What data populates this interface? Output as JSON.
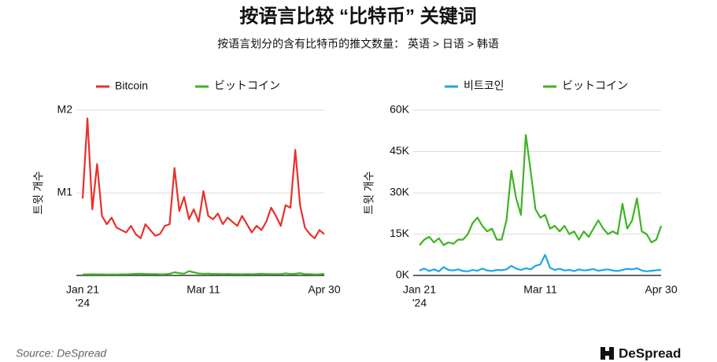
{
  "title": "按语言比较 “比特币” 关键词",
  "subtitle": "按语言划分的含有比特币的推文数量： 英语 > 日语 > 韩语",
  "source": "Source: DeSpread",
  "logo": "DeSpread",
  "chart_data": [
    {
      "type": "line",
      "y_label": "트윗 개수",
      "year_label": "'24",
      "categories": [
        "Jan 21",
        null,
        null,
        null,
        null,
        null,
        null,
        null,
        null,
        null,
        null,
        null,
        null,
        null,
        null,
        null,
        null,
        null,
        null,
        null,
        null,
        null,
        null,
        null,
        null,
        "Mar 11",
        null,
        null,
        null,
        null,
        null,
        null,
        null,
        null,
        null,
        null,
        null,
        null,
        null,
        null,
        null,
        null,
        null,
        null,
        null,
        null,
        null,
        null,
        null,
        null,
        "Apr 30"
      ],
      "ylim": [
        0,
        2000000
      ],
      "yticks": [
        {
          "value": 1000000,
          "label": "M1"
        },
        {
          "value": 2000000,
          "label": "M2"
        }
      ],
      "grid": true,
      "series": [
        {
          "name": "Bitcoin",
          "color": "#e8302a",
          "values": [
            930000,
            1900000,
            800000,
            1350000,
            720000,
            620000,
            700000,
            580000,
            550000,
            520000,
            600000,
            500000,
            450000,
            620000,
            550000,
            480000,
            500000,
            600000,
            620000,
            1300000,
            780000,
            950000,
            680000,
            800000,
            650000,
            1020000,
            720000,
            680000,
            750000,
            620000,
            700000,
            650000,
            600000,
            720000,
            620000,
            520000,
            600000,
            550000,
            650000,
            820000,
            720000,
            600000,
            850000,
            820000,
            1520000,
            850000,
            580000,
            500000,
            450000,
            550000,
            500000
          ]
        },
        {
          "name": "ビットコイン",
          "color": "#3cb521",
          "values": [
            11000,
            13000,
            14000,
            12000,
            13500,
            11000,
            12000,
            11500,
            13000,
            13000,
            15000,
            19000,
            21000,
            18000,
            16000,
            17000,
            13000,
            13000,
            20000,
            38000,
            28000,
            22000,
            51000,
            38000,
            24000,
            21000,
            22000,
            17000,
            18000,
            16000,
            18000,
            15000,
            16000,
            13000,
            16000,
            14000,
            17000,
            20000,
            17000,
            15000,
            16000,
            15000,
            26000,
            17000,
            20000,
            28000,
            16000,
            15000,
            12000,
            13000,
            18000
          ]
        }
      ]
    },
    {
      "type": "line",
      "y_label": "트윗 개수",
      "year_label": "'24",
      "categories": [
        "Jan 21",
        null,
        null,
        null,
        null,
        null,
        null,
        null,
        null,
        null,
        null,
        null,
        null,
        null,
        null,
        null,
        null,
        null,
        null,
        null,
        null,
        null,
        null,
        null,
        null,
        "Mar 11",
        null,
        null,
        null,
        null,
        null,
        null,
        null,
        null,
        null,
        null,
        null,
        null,
        null,
        null,
        null,
        null,
        null,
        null,
        null,
        null,
        null,
        null,
        null,
        null,
        "Apr 30"
      ],
      "ylim": [
        0,
        60000
      ],
      "yticks": [
        {
          "value": 0,
          "label": "0K"
        },
        {
          "value": 15000,
          "label": "15K"
        },
        {
          "value": 30000,
          "label": "30K"
        },
        {
          "value": 45000,
          "label": "45K"
        },
        {
          "value": 60000,
          "label": "60K"
        }
      ],
      "grid": true,
      "series": [
        {
          "name": "비트코인",
          "color": "#1ea7e8",
          "values": [
            1800,
            2500,
            1600,
            2200,
            1500,
            3000,
            2000,
            1800,
            2200,
            1600,
            1500,
            2000,
            1700,
            2500,
            1800,
            1600,
            2000,
            1900,
            2200,
            3500,
            2500,
            2000,
            2600,
            2200,
            3500,
            4000,
            7500,
            2800,
            2000,
            2400,
            1800,
            2000,
            1600,
            2200,
            1800,
            2000,
            2300,
            1700,
            2000,
            2200,
            1800,
            1600,
            2000,
            2400,
            2200,
            2600,
            1800,
            1500,
            1700,
            1900,
            2000
          ]
        },
        {
          "name": "ビットコイン",
          "color": "#3cb521",
          "values": [
            11000,
            13000,
            14000,
            12000,
            13500,
            11000,
            12000,
            11500,
            13000,
            13000,
            15000,
            19000,
            21000,
            18000,
            16000,
            17000,
            13000,
            13000,
            20000,
            38000,
            28000,
            22000,
            51000,
            38000,
            24000,
            21000,
            22000,
            17000,
            18000,
            16000,
            18000,
            15000,
            16000,
            13000,
            16000,
            14000,
            17000,
            20000,
            17000,
            15000,
            16000,
            15000,
            26000,
            17000,
            20000,
            28000,
            16000,
            15000,
            12000,
            13000,
            18000
          ]
        }
      ]
    }
  ]
}
